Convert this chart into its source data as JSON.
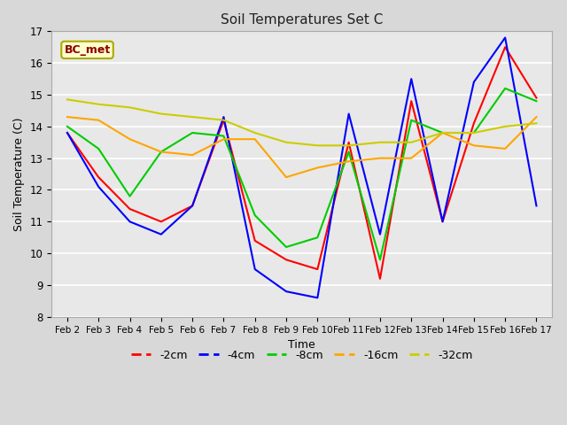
{
  "title": "Soil Temperatures Set C",
  "xlabel": "Time",
  "ylabel": "Soil Temperature (C)",
  "ylim": [
    8.0,
    17.0
  ],
  "yticks": [
    8.0,
    9.0,
    10.0,
    11.0,
    12.0,
    13.0,
    14.0,
    15.0,
    16.0,
    17.0
  ],
  "x_labels": [
    "Feb 2",
    "Feb 3",
    "Feb 4",
    "Feb 5",
    "Feb 6",
    "Feb 7",
    "Feb 8",
    "Feb 9",
    "Feb 10",
    "Feb 11",
    "Feb 12",
    "Feb 13",
    "Feb 14",
    "Feb 15",
    "Feb 16",
    "Feb 17"
  ],
  "annotation_text": "BC_met",
  "annotation_color": "#8B0000",
  "annotation_bg": "#FFFFCC",
  "annotation_edge": "#AAAA00",
  "series": {
    "-2cm": {
      "color": "#FF0000",
      "values": [
        13.8,
        12.4,
        11.4,
        11.0,
        11.5,
        14.2,
        10.4,
        9.8,
        9.5,
        13.5,
        9.2,
        14.8,
        11.0,
        14.1,
        16.5,
        14.9
      ]
    },
    "-4cm": {
      "color": "#0000FF",
      "values": [
        13.8,
        12.1,
        11.0,
        10.6,
        11.5,
        14.3,
        9.5,
        8.8,
        8.6,
        14.4,
        10.6,
        15.5,
        11.0,
        15.4,
        16.8,
        11.5
      ]
    },
    "-8cm": {
      "color": "#00CC00",
      "values": [
        14.0,
        13.3,
        11.8,
        13.2,
        13.8,
        13.7,
        11.2,
        10.2,
        10.5,
        13.2,
        9.8,
        14.2,
        13.8,
        13.8,
        15.2,
        14.8
      ]
    },
    "-16cm": {
      "color": "#FFA500",
      "values": [
        14.3,
        14.2,
        13.6,
        13.2,
        13.1,
        13.6,
        13.6,
        12.4,
        12.7,
        12.9,
        13.0,
        13.0,
        13.8,
        13.4,
        13.3,
        14.3
      ]
    },
    "-32cm": {
      "color": "#CCCC00",
      "values": [
        14.85,
        14.7,
        14.6,
        14.4,
        14.3,
        14.2,
        13.8,
        13.5,
        13.4,
        13.4,
        13.5,
        13.5,
        13.8,
        13.8,
        14.0,
        14.1
      ]
    }
  },
  "bg_color": "#D8D8D8",
  "plot_bg_color": "#E8E8E8",
  "grid_color": "#FFFFFF",
  "legend_order": [
    "-2cm",
    "-4cm",
    "-8cm",
    "-16cm",
    "-32cm"
  ],
  "figsize": [
    6.4,
    4.8
  ],
  "dpi": 100
}
